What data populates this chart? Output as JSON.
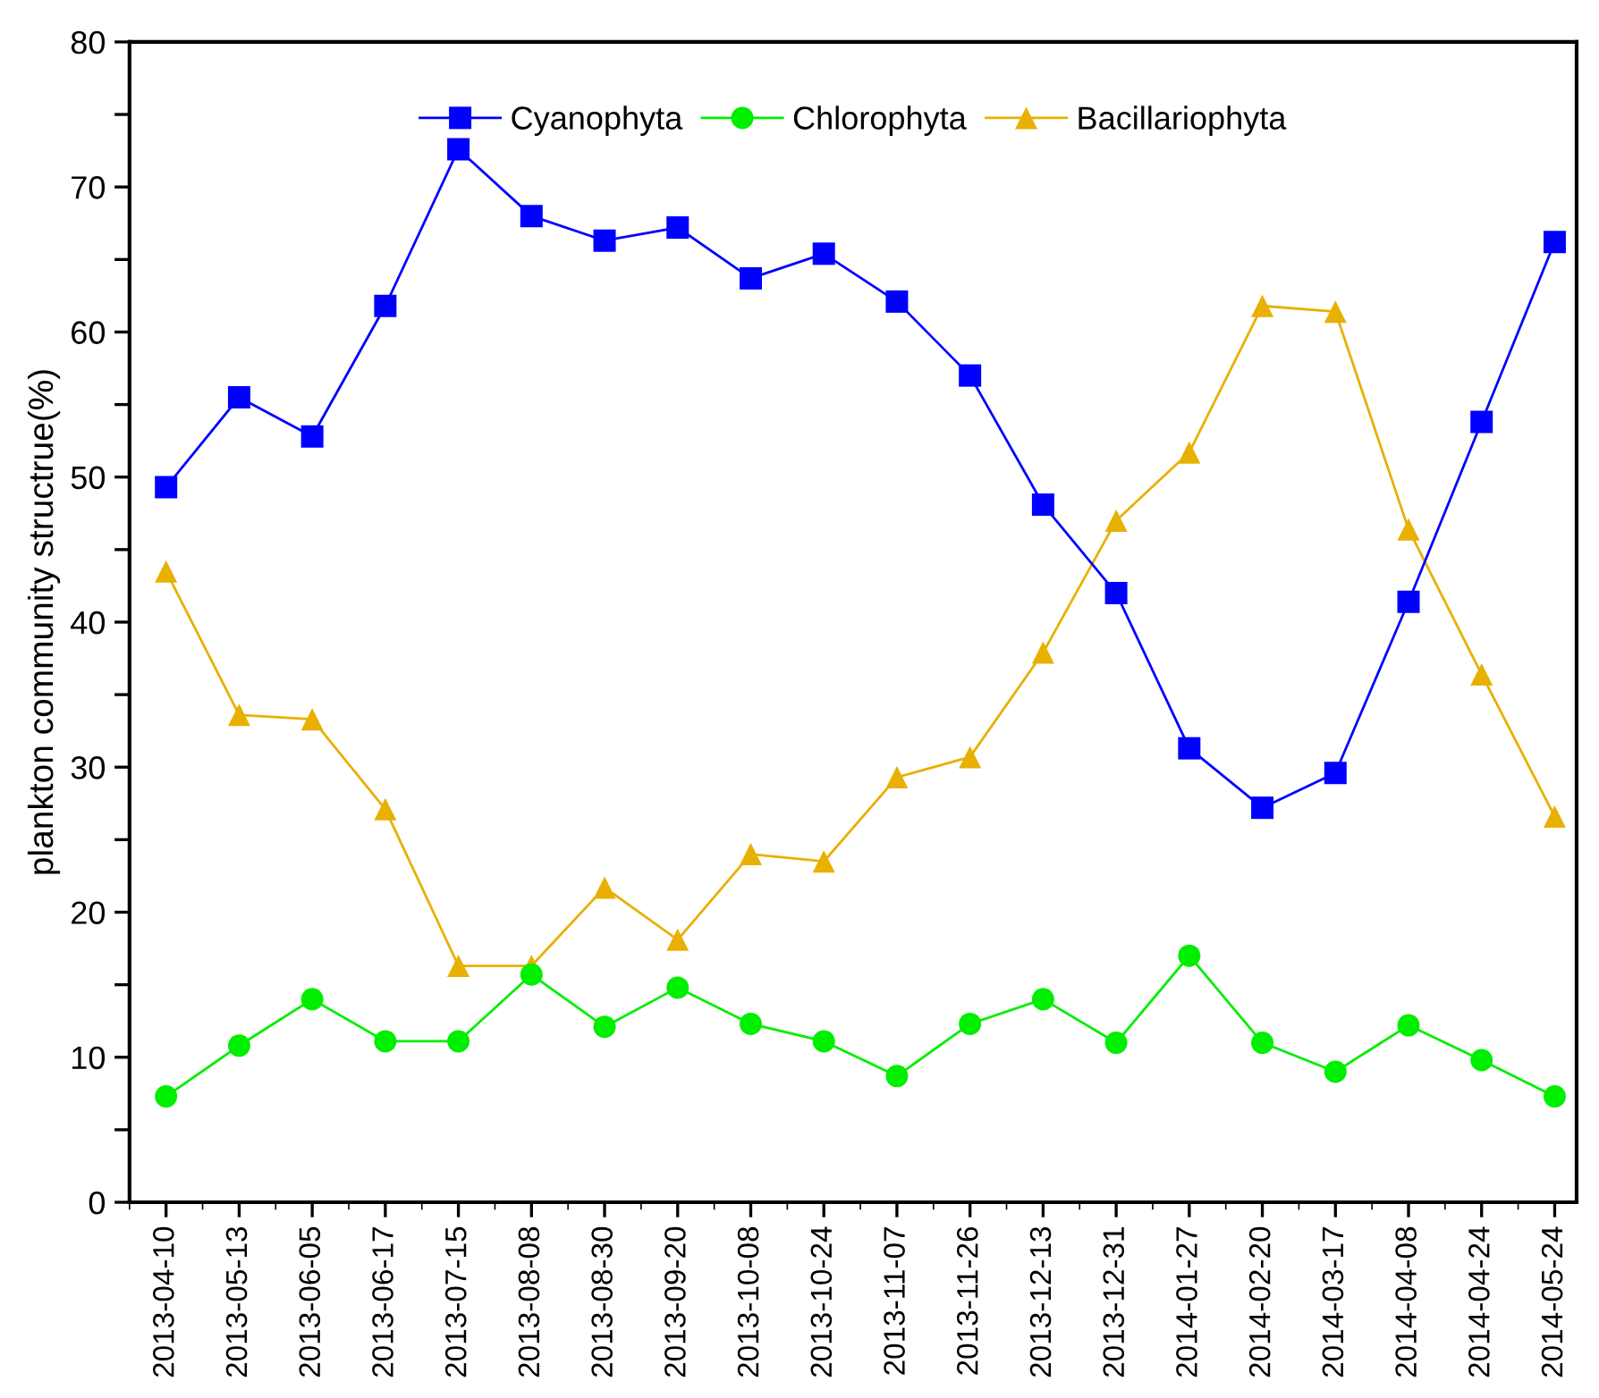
{
  "chart_data": {
    "type": "line",
    "ylabel": "plankton community structrue(%)",
    "categories": [
      "2013-04-10",
      "2013-05-13",
      "2013-06-05",
      "2013-06-17",
      "2013-07-15",
      "2013-08-08",
      "2013-08-30",
      "2013-09-20",
      "2013-10-08",
      "2013-10-24",
      "2013-11-07",
      "2013-11-26",
      "2013-12-13",
      "2013-12-31",
      "2014-01-27",
      "2014-02-20",
      "2014-03-17",
      "2014-04-08",
      "2014-04-24",
      "2014-05-24"
    ],
    "series": [
      {
        "name": "Cyanophyta",
        "color": "#0000ff",
        "marker": "square",
        "values": [
          49.3,
          55.5,
          52.8,
          61.8,
          72.6,
          68.0,
          66.3,
          67.2,
          63.7,
          65.4,
          62.1,
          57.0,
          48.1,
          42.0,
          31.3,
          27.2,
          29.6,
          41.4,
          53.8,
          66.2
        ]
      },
      {
        "name": "Chlorophyta",
        "color": "#00ee00",
        "marker": "circle",
        "values": [
          7.3,
          10.8,
          14.0,
          11.1,
          11.1,
          15.7,
          12.1,
          14.8,
          12.3,
          11.1,
          8.7,
          12.3,
          14.0,
          11.0,
          17.0,
          11.0,
          9.0,
          12.2,
          9.8,
          7.3
        ]
      },
      {
        "name": "Bacillariophyta",
        "color": "#e8b000",
        "marker": "triangle",
        "values": [
          43.5,
          33.6,
          33.3,
          27.1,
          16.3,
          16.3,
          21.7,
          18.1,
          24.0,
          23.5,
          29.3,
          30.7,
          37.9,
          47.0,
          51.7,
          61.8,
          61.4,
          46.4,
          36.4,
          26.6
        ]
      }
    ],
    "ylim": [
      0,
      80
    ],
    "yticks": [
      0,
      {
        "value": 5,
        "label": null
      },
      10,
      {
        "value": 15,
        "label": null
      },
      20,
      {
        "value": 25,
        "label": null
      },
      30,
      {
        "value": 35,
        "label": null
      },
      40,
      {
        "value": 45,
        "label": null
      },
      50,
      {
        "value": 55,
        "label": null
      },
      60,
      {
        "value": 65,
        "label": null
      },
      70,
      {
        "value": 75,
        "label": null
      },
      80
    ],
    "grid": false,
    "legend": "top",
    "line_style": "solid"
  }
}
